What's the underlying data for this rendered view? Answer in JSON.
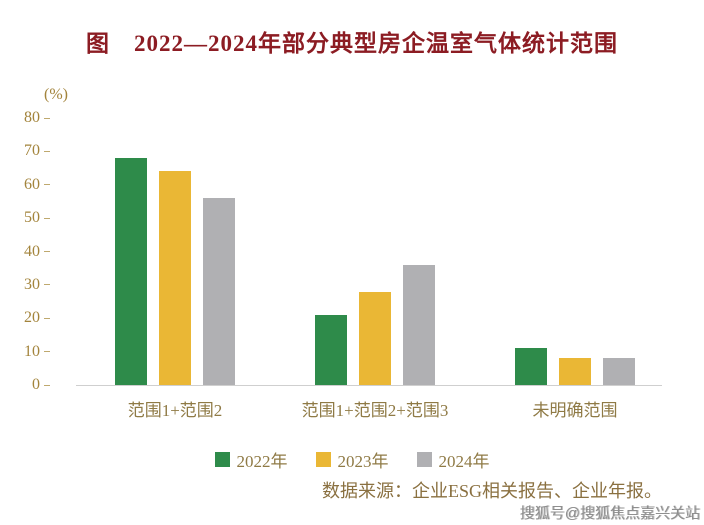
{
  "chart_data": {
    "type": "bar",
    "title": "图　2022—2024年部分典型房企温室气体统计范围",
    "unit_label": "(%)",
    "categories": [
      "范围1+范围2",
      "范围1+范围2+范围3",
      "未明确范围"
    ],
    "series": [
      {
        "name": "2022年",
        "color": "#2e8b4a",
        "values": [
          68,
          21,
          11
        ]
      },
      {
        "name": "2023年",
        "color": "#eab735",
        "values": [
          64,
          28,
          8
        ]
      },
      {
        "name": "2024年",
        "color": "#b0b0b3",
        "values": [
          56,
          36,
          8
        ]
      }
    ],
    "xlabel": "",
    "ylabel": "(%)",
    "ylim": [
      0,
      80
    ],
    "yticks": [
      0,
      10,
      20,
      30,
      40,
      50,
      60,
      70,
      80
    ],
    "grid": false,
    "legend_position": "bottom",
    "title_color": "#8c1c23",
    "axis_text_color": "#a3843c"
  },
  "source": "数据来源：企业ESG相关报告、企业年报。",
  "watermark": "搜狐号@搜狐焦点嘉兴关站"
}
